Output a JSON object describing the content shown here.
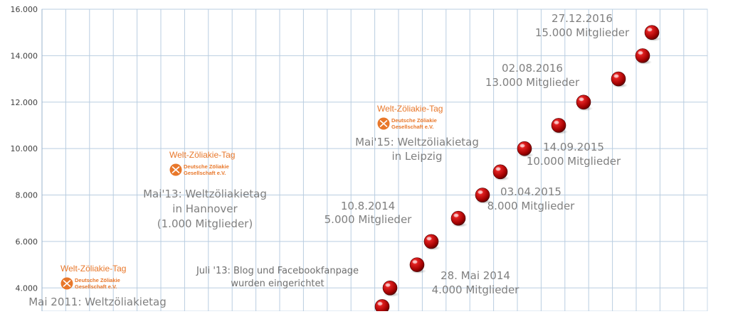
{
  "chart_data": {
    "type": "scatter",
    "title": "",
    "xlabel": "",
    "ylabel": "",
    "ylim": [
      3000,
      16000
    ],
    "y_ticks": [
      "4.000",
      "6.000",
      "8.000",
      "10.000",
      "12.000",
      "14.000",
      "16.000"
    ],
    "y_tick_values": [
      4000,
      6000,
      8000,
      10000,
      12000,
      14000,
      16000
    ],
    "grid": true,
    "series": [
      {
        "values": [
          3200,
          4000,
          5000,
          6000,
          7000,
          8000,
          9000,
          10000,
          11000,
          12000,
          13000,
          14000,
          15000
        ]
      }
    ],
    "marker_color": "#c00000",
    "annotations": [
      {
        "lines": [
          "Mai 2011: Weltzöliakietag"
        ],
        "style": "large"
      },
      {
        "lines": [
          "Mai'13: Weltzöliakietag",
          "in Hannover",
          "(1.000 Mitglieder)"
        ],
        "style": "large"
      },
      {
        "lines": [
          "Juli '13: Blog und Facebookfanpage",
          "wurden eingerichtet"
        ],
        "style": "small"
      },
      {
        "lines": [
          "10.8.2014",
          "5.000 Mitglieder"
        ],
        "style": "large"
      },
      {
        "lines": [
          "28. Mai 2014",
          "4.000 Mitglieder"
        ],
        "style": "large"
      },
      {
        "lines": [
          "Mai'15: Weltzöliakietag",
          "in Leipzig"
        ],
        "style": "large"
      },
      {
        "lines": [
          "03.04.2015",
          "8.000 Mitglieder"
        ],
        "style": "large"
      },
      {
        "lines": [
          "14.09.2015",
          "10.000 Mitglieder"
        ],
        "style": "large"
      },
      {
        "lines": [
          "02.08.2016",
          "13.000 Mitglieder"
        ],
        "style": "large"
      },
      {
        "lines": [
          "27.12.2016",
          "15.000 Mitglieder"
        ],
        "style": "large"
      }
    ],
    "logo": {
      "title": "Welt-Zöliakie-Tag",
      "line1": "Deutsche Zöliakie",
      "line2": "Gesellschaft  e.V.",
      "color": "#e8772a"
    }
  }
}
